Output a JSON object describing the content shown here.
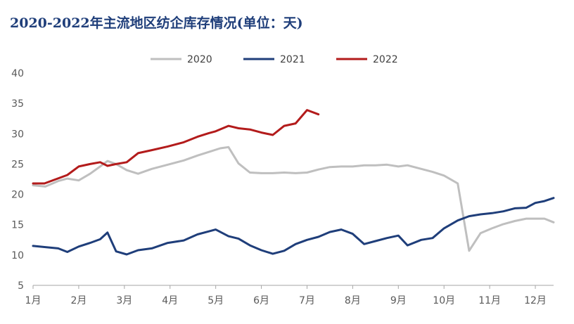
{
  "chart_data": {
    "type": "line",
    "title": "2020-2022年主流地区纺企库存情况(单位：天)",
    "xlabel": "",
    "ylabel": "",
    "ylim": [
      5,
      40
    ],
    "yticks": [
      5,
      10,
      15,
      20,
      25,
      30,
      35,
      40
    ],
    "xlim": [
      1,
      12.4
    ],
    "x_ticks": [
      {
        "value": 1,
        "label": "1月"
      },
      {
        "value": 2,
        "label": "2月"
      },
      {
        "value": 3,
        "label": "3月"
      },
      {
        "value": 4,
        "label": "4月"
      },
      {
        "value": 5,
        "label": "5月"
      },
      {
        "value": 6,
        "label": "6月"
      },
      {
        "value": 7,
        "label": "7月"
      },
      {
        "value": 8,
        "label": "8月"
      },
      {
        "value": 9,
        "label": "9月"
      },
      {
        "value": 10,
        "label": "10月"
      },
      {
        "value": 11,
        "label": "11月"
      },
      {
        "value": 12,
        "label": "12月"
      }
    ],
    "grid": false,
    "legend_position": "top",
    "series": [
      {
        "name": "2020",
        "color": "#bfbfbf",
        "x": [
          1.0,
          1.27,
          1.55,
          1.75,
          2.0,
          2.25,
          2.47,
          2.63,
          2.82,
          3.05,
          3.3,
          3.6,
          3.95,
          4.3,
          4.6,
          4.85,
          5.1,
          5.28,
          5.5,
          5.75,
          6.0,
          6.25,
          6.5,
          6.75,
          7.0,
          7.25,
          7.5,
          7.75,
          8.0,
          8.25,
          8.5,
          8.75,
          9.0,
          9.2,
          9.5,
          9.75,
          10.0,
          10.3,
          10.55,
          10.8,
          11.05,
          11.3,
          11.55,
          11.8,
          12.0,
          12.2,
          12.4
        ],
        "y": [
          21.5,
          21.3,
          22.2,
          22.6,
          22.3,
          23.4,
          24.6,
          25.5,
          25.0,
          24.0,
          23.4,
          24.2,
          24.9,
          25.6,
          26.4,
          27.0,
          27.6,
          27.8,
          25.1,
          23.6,
          23.5,
          23.5,
          23.6,
          23.5,
          23.6,
          24.1,
          24.5,
          24.6,
          24.6,
          24.8,
          24.8,
          24.9,
          24.6,
          24.8,
          24.2,
          23.7,
          23.1,
          21.8,
          10.7,
          13.6,
          14.4,
          15.1,
          15.6,
          16.0,
          16.0,
          16.0,
          15.4
        ]
      },
      {
        "name": "2021",
        "color": "#1f3e7a",
        "x": [
          1.0,
          1.27,
          1.55,
          1.75,
          2.0,
          2.25,
          2.47,
          2.63,
          2.82,
          3.05,
          3.3,
          3.6,
          3.95,
          4.3,
          4.6,
          4.85,
          5.0,
          5.28,
          5.5,
          5.75,
          6.0,
          6.25,
          6.5,
          6.75,
          7.0,
          7.25,
          7.5,
          7.75,
          8.0,
          8.25,
          8.5,
          8.75,
          9.0,
          9.2,
          9.5,
          9.75,
          10.0,
          10.3,
          10.55,
          10.8,
          11.05,
          11.3,
          11.55,
          11.8,
          12.0,
          12.2,
          12.4
        ],
        "y": [
          11.5,
          11.3,
          11.1,
          10.5,
          11.4,
          12.0,
          12.6,
          13.7,
          10.6,
          10.1,
          10.8,
          11.1,
          12.0,
          12.4,
          13.4,
          13.9,
          14.2,
          13.1,
          12.7,
          11.6,
          10.8,
          10.2,
          10.7,
          11.8,
          12.5,
          13.0,
          13.8,
          14.2,
          13.5,
          11.8,
          12.3,
          12.8,
          13.2,
          11.6,
          12.5,
          12.8,
          14.4,
          15.7,
          16.4,
          16.7,
          16.9,
          17.2,
          17.7,
          17.8,
          18.6,
          18.9,
          19.4
        ]
      },
      {
        "name": "2022",
        "color": "#b31b1b",
        "x": [
          1.0,
          1.25,
          1.5,
          1.75,
          2.0,
          2.25,
          2.47,
          2.63,
          2.82,
          3.05,
          3.3,
          3.6,
          3.95,
          4.3,
          4.6,
          4.85,
          5.0,
          5.28,
          5.5,
          5.75,
          6.0,
          6.25,
          6.5,
          6.75,
          7.0,
          7.25
        ],
        "y": [
          21.8,
          21.8,
          22.5,
          23.2,
          24.6,
          25.0,
          25.3,
          24.7,
          25.0,
          25.3,
          26.8,
          27.3,
          27.9,
          28.6,
          29.5,
          30.1,
          30.4,
          31.3,
          30.9,
          30.7,
          30.2,
          29.8,
          31.3,
          31.7,
          33.9,
          33.2
        ]
      }
    ]
  }
}
